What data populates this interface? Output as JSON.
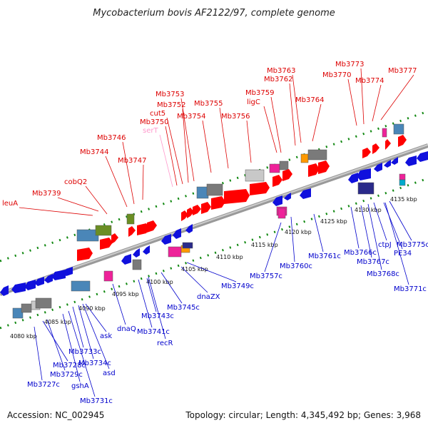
{
  "title": "Mycobacterium bovis AF2122/97, complete genome",
  "footer": {
    "accession": "Accession: NC_002945",
    "topology": "Topology: circular; Length: 4,345,492 bp; Genes: 3,968"
  },
  "colors": {
    "forward_label": "#dd0000",
    "reverse_label": "#0000cc",
    "trna_label": "#ff99cc",
    "backbone": "#888888",
    "dotted_track": "#118811"
  },
  "ticks": [
    "4080 kbp",
    "4085 kbp",
    "4090 kbp",
    "4095 kbp",
    "4100 kbp",
    "4105 kbp",
    "4110 kbp",
    "4115 kbp",
    "4120 kbp",
    "4125 kbp",
    "4130 kbp",
    "4135 kbp"
  ],
  "forward_labels": [
    "leuA",
    "Mb3739",
    "cobQ2",
    "Mb3744",
    "Mb3746",
    "Mb3747",
    "serT",
    "Mb3750",
    "cut5",
    "Mb3752",
    "Mb3753",
    "Mb3754",
    "Mb3755",
    "Mb3756",
    "ligC",
    "Mb3759",
    "Mb3762",
    "Mb3763",
    "Mb3764",
    "Mb3770",
    "Mb3773",
    "Mb3774",
    "Mb3777"
  ],
  "reverse_labels": [
    "Mb3727c",
    "Mb3728c",
    "Mb3729c",
    "gshA",
    "Mb3731c",
    "Mb3733c",
    "Mb3734c",
    "asd",
    "ask",
    "dnaQ",
    "Mb3741c",
    "recR",
    "Mb3743c",
    "Mb3745c",
    "dnaZX",
    "Mb3749c",
    "Mb3757c",
    "Mb3760c",
    "Mb3761c",
    "Mb3766c",
    "Mb3767c",
    "Mb3768c",
    "ctpJ",
    "PE34",
    "Mb3775c",
    "Mb3771c"
  ]
}
